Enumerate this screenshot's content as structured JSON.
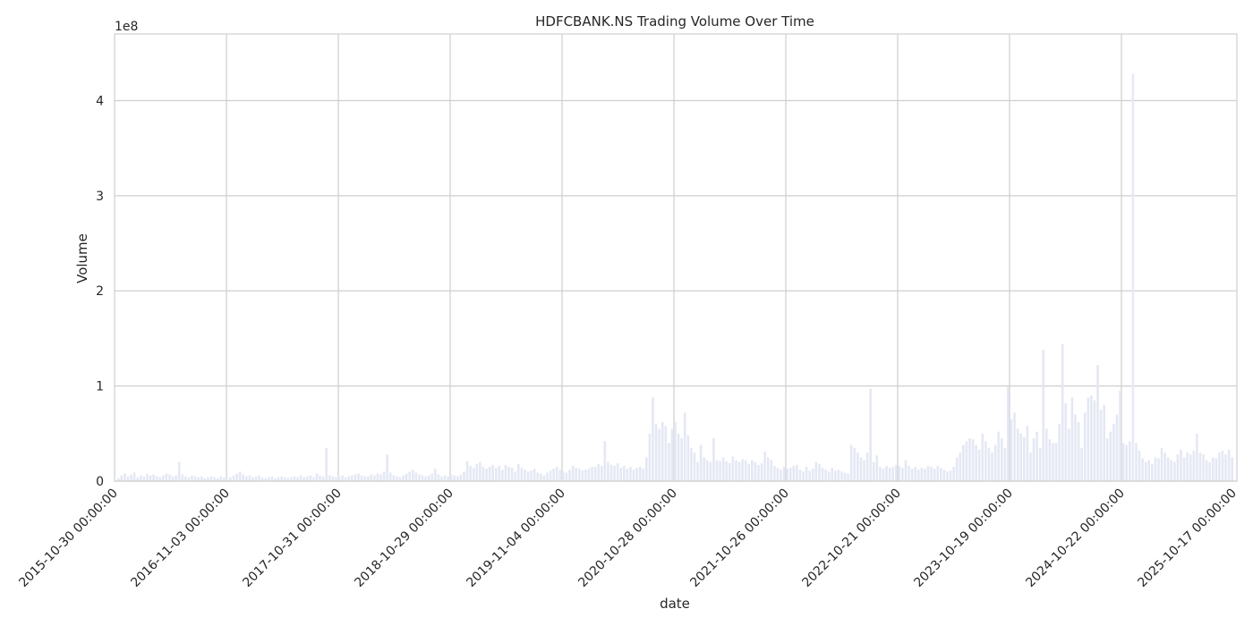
{
  "chart_data": {
    "type": "bar",
    "title": "HDFCBANK.NS Trading Volume Over Time",
    "xlabel": "date",
    "ylabel": "Volume",
    "y_multiplier_label": "1e8",
    "y_unit_multiplier": 100000000,
    "ylim": [
      0,
      470000000
    ],
    "yticks": [
      0,
      100000000,
      200000000,
      300000000,
      400000000
    ],
    "ytick_labels": [
      "0",
      "1",
      "2",
      "3",
      "4"
    ],
    "xticks": [
      "2015-10-30 00:00:00",
      "2016-11-03 00:00:00",
      "2017-10-31 00:00:00",
      "2018-10-29 00:00:00",
      "2019-11-04 00:00:00",
      "2020-10-28 00:00:00",
      "2021-10-26 00:00:00",
      "2022-10-21 00:00:00",
      "2023-10-19 00:00:00",
      "2024-10-22 00:00:00",
      "2025-10-17 00:00:00"
    ],
    "grid": true,
    "bar_color": "#e4e8f4",
    "bar_color_alt": "#e8e8f8",
    "grid_color": "#cfcfcf",
    "series": [
      {
        "values_1e8": [
          0.03,
          0.06,
          0.08,
          0.05,
          0.07,
          0.09,
          0.04,
          0.06,
          0.05,
          0.08,
          0.06,
          0.07,
          0.05,
          0.04,
          0.06,
          0.08,
          0.07,
          0.05,
          0.06,
          0.2,
          0.07,
          0.05,
          0.04,
          0.06,
          0.05,
          0.04,
          0.05,
          0.03,
          0.04,
          0.05,
          0.04,
          0.03,
          0.05,
          0.04,
          0.03,
          0.04,
          0.06,
          0.08,
          0.1,
          0.07,
          0.05,
          0.06,
          0.04,
          0.05,
          0.06,
          0.04,
          0.03,
          0.04,
          0.05,
          0.03,
          0.04,
          0.05,
          0.04,
          0.03,
          0.04,
          0.05,
          0.04,
          0.06,
          0.04,
          0.05,
          0.06,
          0.04,
          0.08,
          0.06,
          0.05,
          0.35,
          0.06,
          0.05,
          0.04,
          0.05,
          0.06,
          0.04,
          0.05,
          0.06,
          0.07,
          0.08,
          0.06,
          0.05,
          0.05,
          0.07,
          0.06,
          0.08,
          0.07,
          0.1,
          0.28,
          0.09,
          0.06,
          0.05,
          0.04,
          0.06,
          0.08,
          0.1,
          0.12,
          0.09,
          0.07,
          0.06,
          0.05,
          0.06,
          0.08,
          0.13,
          0.07,
          0.05,
          0.06,
          0.05,
          0.07,
          0.06,
          0.05,
          0.07,
          0.1,
          0.21,
          0.16,
          0.14,
          0.18,
          0.2,
          0.15,
          0.13,
          0.15,
          0.17,
          0.14,
          0.16,
          0.12,
          0.17,
          0.15,
          0.14,
          0.1,
          0.18,
          0.14,
          0.12,
          0.1,
          0.11,
          0.13,
          0.09,
          0.08,
          0.06,
          0.09,
          0.11,
          0.13,
          0.15,
          0.12,
          0.1,
          0.09,
          0.12,
          0.16,
          0.14,
          0.13,
          0.11,
          0.12,
          0.13,
          0.15,
          0.15,
          0.18,
          0.16,
          0.42,
          0.2,
          0.17,
          0.16,
          0.19,
          0.14,
          0.16,
          0.13,
          0.15,
          0.12,
          0.14,
          0.15,
          0.13,
          0.25,
          0.5,
          0.88,
          0.6,
          0.55,
          0.62,
          0.58,
          0.4,
          0.55,
          0.62,
          0.5,
          0.45,
          0.72,
          0.48,
          0.35,
          0.3,
          0.2,
          0.38,
          0.25,
          0.22,
          0.2,
          0.45,
          0.22,
          0.21,
          0.25,
          0.21,
          0.19,
          0.26,
          0.22,
          0.2,
          0.23,
          0.22,
          0.18,
          0.22,
          0.2,
          0.17,
          0.19,
          0.31,
          0.25,
          0.22,
          0.16,
          0.14,
          0.12,
          0.15,
          0.13,
          0.14,
          0.16,
          0.17,
          0.12,
          0.1,
          0.15,
          0.11,
          0.13,
          0.2,
          0.18,
          0.14,
          0.12,
          0.1,
          0.14,
          0.11,
          0.12,
          0.1,
          0.09,
          0.08,
          0.38,
          0.35,
          0.3,
          0.25,
          0.22,
          0.3,
          0.97,
          0.2,
          0.27,
          0.15,
          0.13,
          0.16,
          0.14,
          0.15,
          0.17,
          0.16,
          0.14,
          0.22,
          0.16,
          0.13,
          0.15,
          0.12,
          0.14,
          0.13,
          0.16,
          0.15,
          0.13,
          0.16,
          0.14,
          0.12,
          0.1,
          0.11,
          0.15,
          0.25,
          0.3,
          0.38,
          0.42,
          0.45,
          0.44,
          0.38,
          0.33,
          0.5,
          0.42,
          0.35,
          0.3,
          0.38,
          0.52,
          0.45,
          0.35,
          0.99,
          0.65,
          0.72,
          0.55,
          0.5,
          0.46,
          0.58,
          0.3,
          0.45,
          0.52,
          0.35,
          1.38,
          0.55,
          0.44,
          0.4,
          0.4,
          0.6,
          1.44,
          0.82,
          0.55,
          0.88,
          0.7,
          0.62,
          0.35,
          0.72,
          0.88,
          0.9,
          0.85,
          1.22,
          0.75,
          0.8,
          0.45,
          0.52,
          0.6,
          0.7,
          0.95,
          0.4,
          0.38,
          0.42,
          4.28,
          0.4,
          0.32,
          0.24,
          0.2,
          0.22,
          0.18,
          0.25,
          0.24,
          0.35,
          0.3,
          0.25,
          0.22,
          0.2,
          0.28,
          0.33,
          0.25,
          0.3,
          0.28,
          0.32,
          0.5,
          0.3,
          0.28,
          0.22,
          0.2,
          0.25,
          0.24,
          0.3,
          0.32,
          0.28,
          0.33,
          0.25
        ]
      }
    ]
  }
}
